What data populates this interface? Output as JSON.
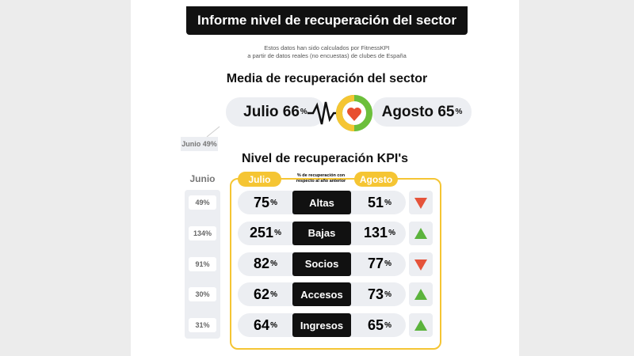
{
  "header": {
    "title": "Informe nivel de recuperación del sector",
    "note": [
      "Estos datos han sido calculados por FitnessKPI",
      "a partir de datos reales (no encuestas) de clubes de España"
    ]
  },
  "summary": {
    "title": "Media de recuperación del sector",
    "julio": {
      "label": "Julio",
      "value": "66",
      "unit": "%"
    },
    "agosto": {
      "label": "Agosto",
      "value": "65",
      "unit": "%"
    },
    "junio": "Junio 49%"
  },
  "kpi": {
    "title": "Nivel de recuperación KPI's",
    "junio": "Junio",
    "julio": "Julio",
    "agosto": "Agosto",
    "note": [
      "% de recuperación con",
      "respecto al año anterior"
    ],
    "rows": [
      {
        "name": "Altas",
        "junio": "49%",
        "julio": {
          "value": "75",
          "unit": "%"
        },
        "agosto": {
          "value": "51",
          "unit": "%"
        },
        "trend": "down"
      },
      {
        "name": "Bajas",
        "junio": "134%",
        "julio": {
          "value": "251",
          "unit": "%"
        },
        "agosto": {
          "value": "131",
          "unit": "%"
        },
        "trend": "up"
      },
      {
        "name": "Socios",
        "junio": "91%",
        "julio": {
          "value": "82",
          "unit": "%"
        },
        "agosto": {
          "value": "77",
          "unit": "%"
        },
        "trend": "down"
      },
      {
        "name": "Accesos",
        "junio": "30%",
        "julio": {
          "value": "62",
          "unit": "%"
        },
        "agosto": {
          "value": "73",
          "unit": "%"
        },
        "trend": "up"
      },
      {
        "name": "Ingresos",
        "junio": "31%",
        "julio": {
          "value": "64",
          "unit": "%"
        },
        "agosto": {
          "value": "65",
          "unit": "%"
        },
        "trend": "up"
      }
    ]
  }
}
